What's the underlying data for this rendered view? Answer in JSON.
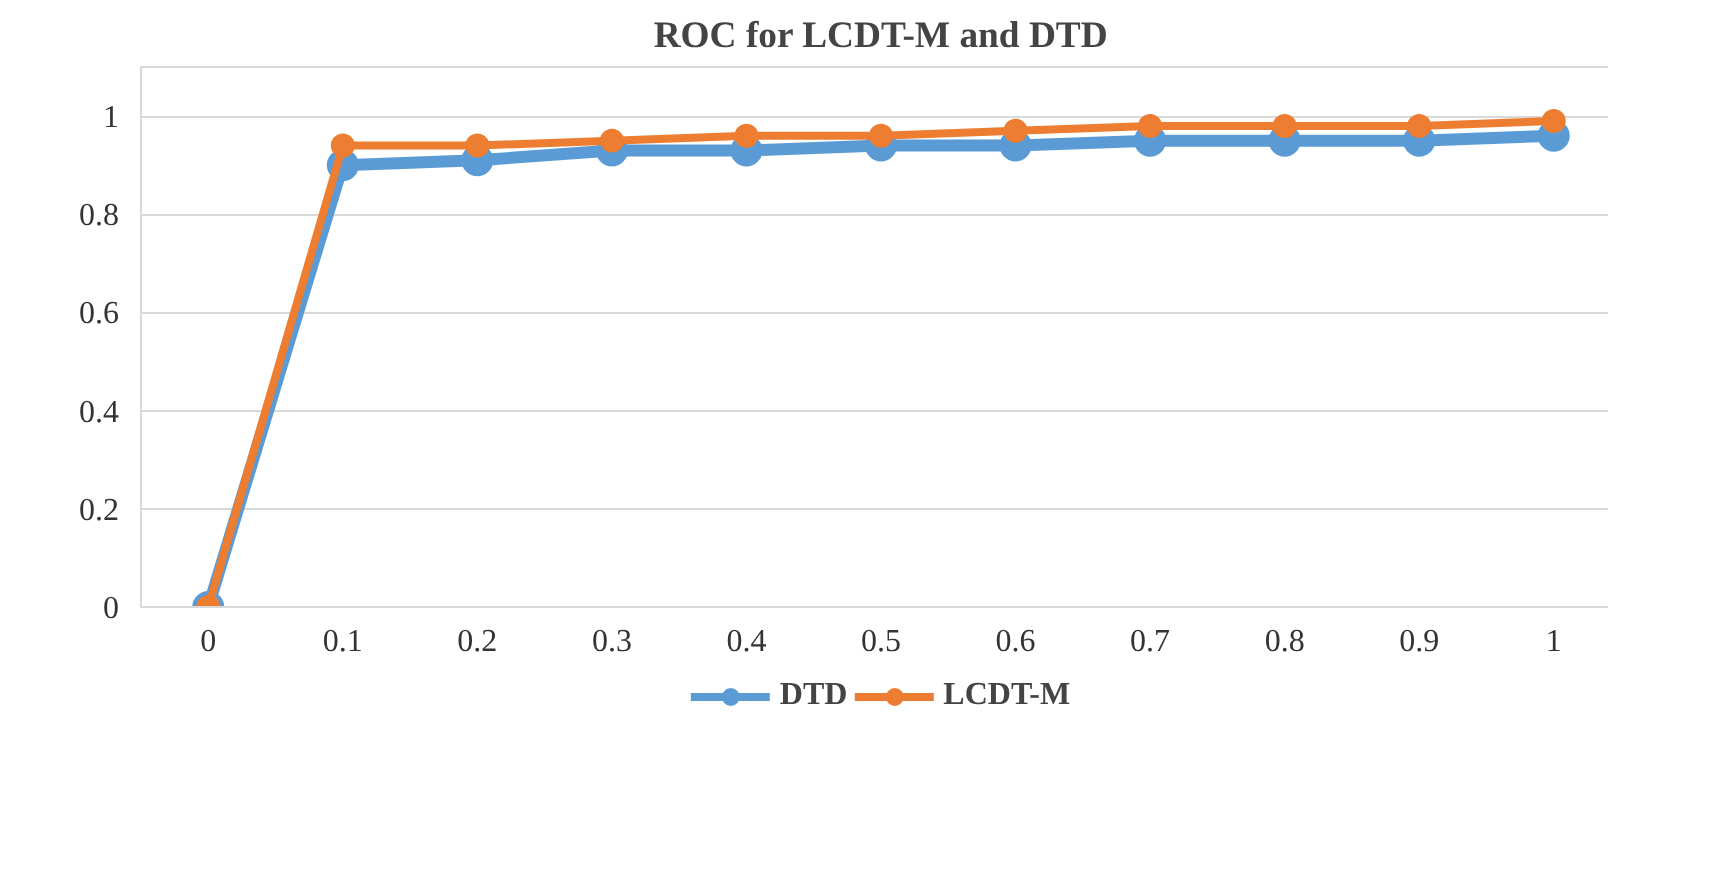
{
  "chart_data": {
    "type": "line",
    "title": "ROC for LCDT-M and DTD",
    "categories": [
      "0",
      "0.1",
      "0.2",
      "0.3",
      "0.4",
      "0.5",
      "0.6",
      "0.7",
      "0.8",
      "0.9",
      "1"
    ],
    "series": [
      {
        "name": "DTD",
        "color": "#5b9bd5",
        "values": [
          0,
          0.9,
          0.91,
          0.93,
          0.93,
          0.94,
          0.94,
          0.95,
          0.95,
          0.95,
          0.96
        ]
      },
      {
        "name": "LCDT-M",
        "color": "#ed7d31",
        "values": [
          0,
          0.94,
          0.94,
          0.95,
          0.96,
          0.96,
          0.97,
          0.98,
          0.98,
          0.98,
          0.99
        ]
      }
    ],
    "ylim": [
      0,
      1.1
    ],
    "yticks": [
      0,
      0.2,
      0.4,
      0.6,
      0.8,
      1
    ],
    "grid": "y",
    "legend": "bottom",
    "marker": "circle",
    "line_style": "solid"
  }
}
